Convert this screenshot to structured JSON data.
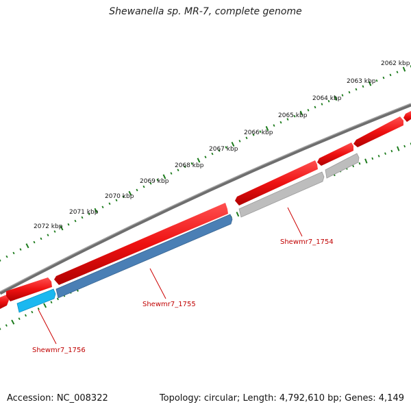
{
  "title": "Shewanella sp. MR-7, complete genome",
  "footer": {
    "accession": "Accession: NC_008322",
    "stats": "Topology: circular; Length: 4,792,610 bp; Genes: 4,149"
  },
  "ruler": {
    "labels": [
      "2062 kbp",
      "2063 kbp",
      "2064 kbp",
      "2065 kbp",
      "2066 kbp",
      "2067 kbp",
      "2068 kbp",
      "2069 kbp",
      "2070 kbp",
      "2071 kbp",
      "2072 kbp"
    ]
  },
  "genes": [
    {
      "name": "Shewmr7_1754",
      "color": "#bdbdbd"
    },
    {
      "name": "Shewmr7_1755",
      "color": "#4a7fb5"
    },
    {
      "name": "Shewmr7_1756",
      "color": "#1ab8f0"
    }
  ],
  "colors": {
    "cds": "#ee1111",
    "backbone": "#7a7a7a",
    "tick": "#1a7a1a"
  }
}
